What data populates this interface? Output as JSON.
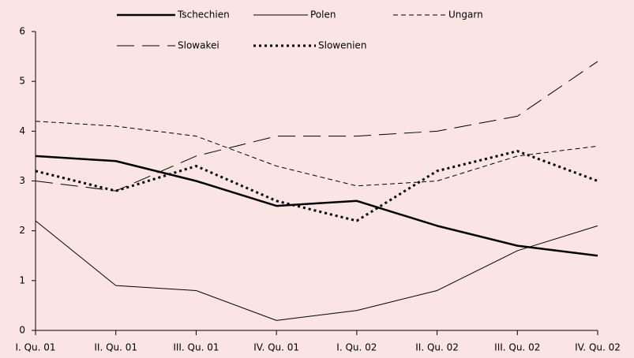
{
  "chart_data": {
    "type": "line",
    "categories": [
      "I. Qu. 01",
      "II. Qu. 01",
      "III. Qu. 01",
      "IV. Qu. 01",
      "I. Qu. 02",
      "II. Qu. 02",
      "III. Qu. 02",
      "IV. Qu. 02"
    ],
    "series": [
      {
        "name": "Tschechien",
        "color": "#000000",
        "width": 2.5,
        "dash": "none",
        "values": [
          3.5,
          3.4,
          3.0,
          2.5,
          2.6,
          2.1,
          1.7,
          1.5
        ]
      },
      {
        "name": "Polen",
        "color": "#000000",
        "width": 1,
        "dash": "none",
        "values": [
          2.2,
          0.9,
          0.8,
          0.2,
          0.4,
          0.8,
          1.6,
          2.1
        ]
      },
      {
        "name": "Ungarn",
        "color": "#000000",
        "width": 1,
        "dash": "6,4",
        "values": [
          4.2,
          4.1,
          3.9,
          3.3,
          2.9,
          3.0,
          3.5,
          3.7
        ]
      },
      {
        "name": "Slowakei",
        "color": "#000000",
        "width": 1,
        "dash": "22,10",
        "values": [
          3.0,
          2.8,
          3.5,
          3.9,
          3.9,
          4.0,
          4.3,
          5.4
        ]
      },
      {
        "name": "Slowenien",
        "color": "#000000",
        "width": 3,
        "dash": "3,4",
        "values": [
          3.2,
          2.8,
          3.3,
          2.6,
          2.2,
          3.2,
          3.6,
          3.0
        ]
      }
    ],
    "ylim": [
      0,
      6
    ],
    "yticks": [
      0,
      1,
      2,
      3,
      4,
      5,
      6
    ],
    "grid": false
  }
}
